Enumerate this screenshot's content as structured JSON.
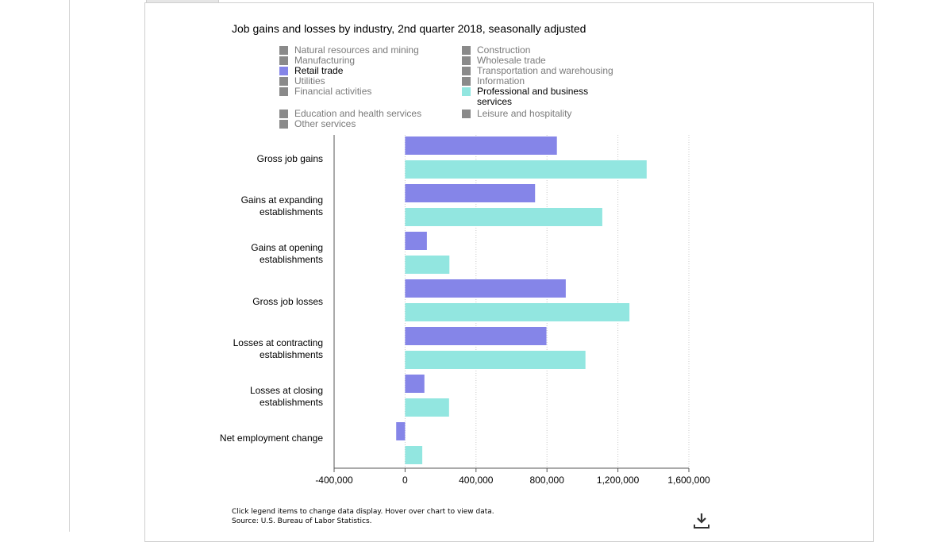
{
  "chart_data": {
    "type": "bar",
    "orientation": "horizontal",
    "title": "Job gains and losses by industry, 2nd quarter 2018, seasonally adjusted",
    "categories": [
      "Gross job gains",
      "Gains at expanding establishments",
      "Gains at opening establishments",
      "Gross job losses",
      "Losses at contracting establishments",
      "Losses at closing establishments",
      "Net employment change"
    ],
    "series": [
      {
        "name": "Retail trade",
        "color": "#8585e8",
        "values": [
          856000,
          733000,
          123000,
          906000,
          797000,
          109000,
          -50000
        ]
      },
      {
        "name": "Professional and business services",
        "color": "#92e6e0",
        "values": [
          1362000,
          1112000,
          250000,
          1265000,
          1017000,
          248000,
          97000
        ]
      }
    ],
    "xlim": [
      -400000,
      1600000
    ],
    "xticks": [
      -400000,
      0,
      400000,
      800000,
      1200000,
      1600000
    ],
    "xtick_labels": [
      "-400,000",
      "0",
      "400,000",
      "800,000",
      "1,200,000",
      "1,600,000"
    ],
    "grid": true,
    "legend_placement": "top",
    "legend": [
      {
        "label": "Natural resources and mining",
        "color": "#8a8a8a",
        "active": false
      },
      {
        "label": "Construction",
        "color": "#8a8a8a",
        "active": false
      },
      {
        "label": "Manufacturing",
        "color": "#8a8a8a",
        "active": false
      },
      {
        "label": "Wholesale trade",
        "color": "#8a8a8a",
        "active": false
      },
      {
        "label": "Retail trade",
        "color": "#8585e8",
        "active": true
      },
      {
        "label": "Transportation and warehousing",
        "color": "#8a8a8a",
        "active": false
      },
      {
        "label": "Utilities",
        "color": "#8a8a8a",
        "active": false
      },
      {
        "label": "Information",
        "color": "#8a8a8a",
        "active": false
      },
      {
        "label": "Financial activities",
        "color": "#8a8a8a",
        "active": false
      },
      {
        "label": "Professional and business services",
        "color": "#92e6e0",
        "active": true
      },
      {
        "label": "Education and health services",
        "color": "#8a8a8a",
        "active": false
      },
      {
        "label": "Leisure and hospitality",
        "color": "#8a8a8a",
        "active": false
      },
      {
        "label": "Other services",
        "color": "#8a8a8a",
        "active": false
      }
    ]
  },
  "footer": {
    "instructions": "Click legend items to change data display. Hover over chart to view data.",
    "source": "Source: U.S. Bureau of Labor Statistics."
  },
  "icons": {
    "download": "download-icon"
  }
}
